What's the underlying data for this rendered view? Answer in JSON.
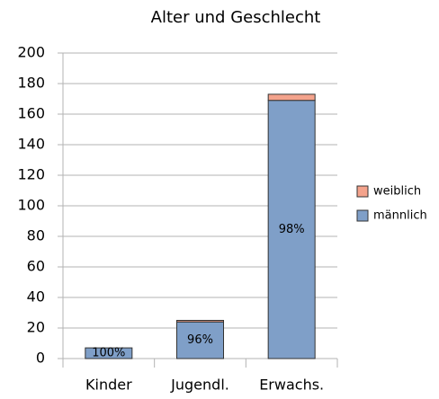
{
  "chart_data": {
    "type": "stacked_bar",
    "title": "Alter und Geschlecht",
    "categories": [
      "Kinder",
      "Jugendl.",
      "Erwachs."
    ],
    "series": [
      {
        "name": "männlich",
        "color": "#7f9fc8",
        "values": [
          7,
          24,
          169
        ]
      },
      {
        "name": "weiblich",
        "color": "#f4a38c",
        "values": [
          0,
          1,
          4
        ]
      }
    ],
    "annotations": [
      "100%",
      "96%",
      "98%"
    ],
    "ylim": [
      0,
      200
    ],
    "yticks": [
      0,
      20,
      40,
      60,
      80,
      100,
      120,
      140,
      160,
      180,
      200
    ],
    "grid": true
  }
}
